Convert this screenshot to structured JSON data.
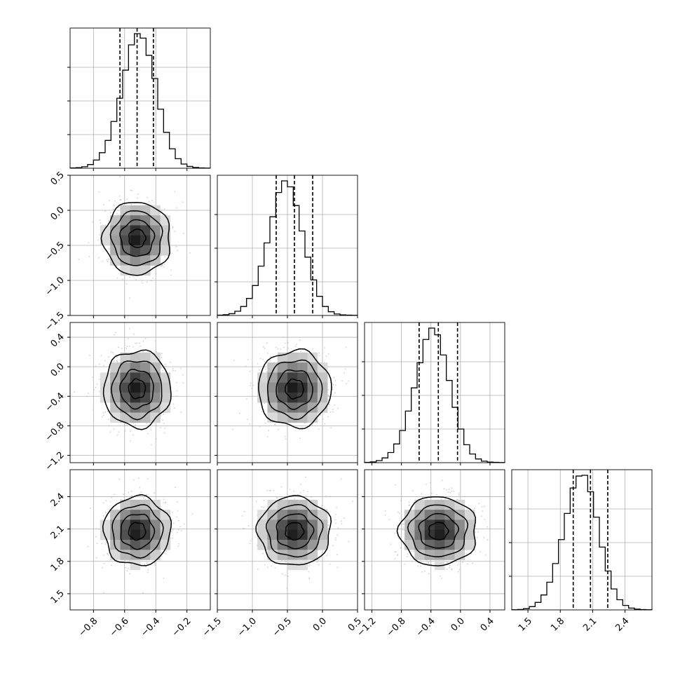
{
  "chart_data": {
    "type": "corner",
    "grid": true,
    "parameters": [
      {
        "index": 0,
        "range": [
          -0.95,
          -0.05
        ],
        "mean": -0.52,
        "quantiles": [
          -0.63,
          -0.52,
          -0.415
        ],
        "ticks": [
          "-0.8",
          "-0.6",
          "-0.4",
          "-0.2"
        ],
        "tick_values": [
          -0.8,
          -0.6,
          -0.4,
          -0.2
        ]
      },
      {
        "index": 1,
        "range": [
          -1.5,
          0.5
        ],
        "mean": -0.4,
        "quantiles": [
          -0.66,
          -0.4,
          -0.14
        ],
        "ticks": [
          "-1.5",
          "-1.0",
          "-0.5",
          "0.0",
          "0.5"
        ],
        "tick_values": [
          -1.5,
          -1.0,
          -0.5,
          0.0,
          0.5
        ]
      },
      {
        "index": 2,
        "range": [
          -1.3,
          0.6
        ],
        "mean": -0.3,
        "quantiles": [
          -0.56,
          -0.3,
          -0.04
        ],
        "ticks": [
          "-1.2",
          "-0.8",
          "-0.4",
          "0.0",
          "0.4"
        ],
        "tick_values": [
          -1.2,
          -0.8,
          -0.4,
          0.0,
          0.4
        ]
      },
      {
        "index": 3,
        "range": [
          1.35,
          2.65
        ],
        "mean": 2.08,
        "quantiles": [
          1.92,
          2.08,
          2.24
        ],
        "ticks": [
          "1.5",
          "1.8",
          "2.1",
          "2.4"
        ],
        "tick_values": [
          1.5,
          1.8,
          2.1,
          2.4
        ]
      }
    ],
    "marginal_counts": [
      [
        2,
        4,
        10,
        25,
        55,
        104,
        186,
        313,
        468,
        656,
        825,
        900,
        870,
        755,
        600,
        395,
        240,
        130,
        64,
        28,
        12,
        5,
        2,
        1
      ],
      [
        2,
        5,
        12,
        28,
        60,
        114,
        200,
        330,
        485,
        660,
        822,
        900,
        860,
        735,
        565,
        390,
        238,
        128,
        60,
        25,
        10,
        4,
        2,
        1
      ],
      [
        2,
        5,
        14,
        32,
        68,
        125,
        215,
        345,
        500,
        668,
        824,
        900,
        855,
        720,
        550,
        370,
        225,
        120,
        58,
        25,
        10,
        4,
        2,
        1
      ],
      [
        1,
        3,
        8,
        22,
        50,
        100,
        185,
        310,
        470,
        645,
        815,
        895,
        900,
        790,
        620,
        420,
        260,
        140,
        68,
        30,
        12,
        5,
        2,
        1
      ]
    ],
    "pairs": [
      {
        "x": 0,
        "y": 1
      },
      {
        "x": 0,
        "y": 2
      },
      {
        "x": 1,
        "y": 2
      },
      {
        "x": 0,
        "y": 3
      },
      {
        "x": 1,
        "y": 3
      },
      {
        "x": 2,
        "y": 3
      }
    ],
    "contour_levels_sigma": [
      0.5,
      1.0,
      1.5,
      2.0
    ],
    "scatter_points_per_panel": 650
  }
}
